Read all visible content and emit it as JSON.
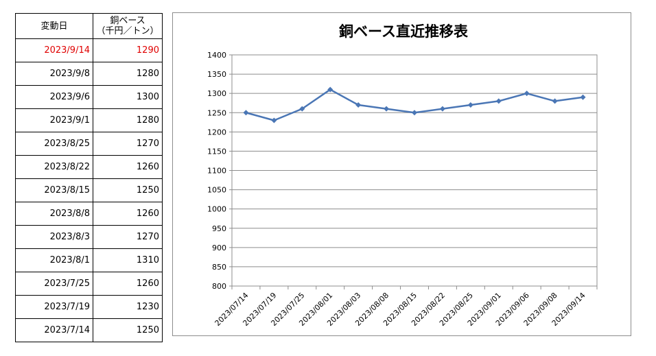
{
  "table": {
    "header_date": "変動日",
    "header_value_line1": "銅ベース",
    "header_value_line2": "（千円／トン）",
    "rows": [
      {
        "date": "2023/9/14",
        "value": "1290",
        "highlight": true
      },
      {
        "date": "2023/9/8",
        "value": "1280"
      },
      {
        "date": "2023/9/6",
        "value": "1300"
      },
      {
        "date": "2023/9/1",
        "value": "1280"
      },
      {
        "date": "2023/8/25",
        "value": "1270"
      },
      {
        "date": "2023/8/22",
        "value": "1260"
      },
      {
        "date": "2023/8/15",
        "value": "1250"
      },
      {
        "date": "2023/8/8",
        "value": "1260"
      },
      {
        "date": "2023/8/3",
        "value": "1270"
      },
      {
        "date": "2023/8/1",
        "value": "1310"
      },
      {
        "date": "2023/7/25",
        "value": "1260"
      },
      {
        "date": "2023/7/19",
        "value": "1230"
      },
      {
        "date": "2023/7/14",
        "value": "1250"
      }
    ],
    "highlight_color": "#e00000"
  },
  "chart_data": {
    "type": "line",
    "title": "銅ベース直近推移表",
    "categories": [
      "2023/07/14",
      "2023/07/19",
      "2023/07/25",
      "2023/08/01",
      "2023/08/03",
      "2023/08/08",
      "2023/08/15",
      "2023/08/22",
      "2023/08/25",
      "2023/09/01",
      "2023/09/06",
      "2023/09/08",
      "2023/09/14"
    ],
    "series": [
      {
        "values": [
          1250,
          1230,
          1260,
          1310,
          1270,
          1260,
          1250,
          1260,
          1270,
          1280,
          1300,
          1280,
          1290
        ],
        "color": "#4a76b5"
      }
    ],
    "ylim": [
      800,
      1400
    ],
    "yticks": [
      800,
      850,
      900,
      950,
      1000,
      1050,
      1100,
      1150,
      1200,
      1250,
      1300,
      1350,
      1400
    ],
    "grid": true,
    "legend": "none"
  }
}
